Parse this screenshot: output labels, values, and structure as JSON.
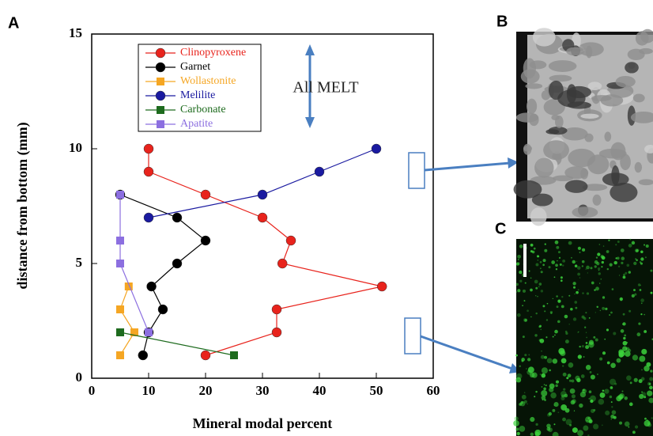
{
  "chart_data": {
    "type": "line",
    "panel_labels": [
      "A",
      "B",
      "C"
    ],
    "annotation": "All MELT",
    "xlabel": "Mineral modal percent",
    "ylabel": "distance from bottom (mm)",
    "xlim": [
      0,
      60
    ],
    "xticks": [
      0,
      10,
      20,
      30,
      40,
      50,
      60
    ],
    "ylim": [
      0,
      15
    ],
    "yticks": [
      0,
      5,
      10,
      15
    ],
    "series": [
      {
        "name": "Clinopyroxene",
        "color": "#e8231c",
        "marker": "circle",
        "x": [
          10,
          10,
          20,
          30,
          35,
          33.5,
          51,
          32.5,
          32.5,
          20
        ],
        "y": [
          10,
          9,
          8,
          7,
          6,
          5,
          4,
          3,
          2,
          1
        ]
      },
      {
        "name": "Garnet",
        "color": "#000000",
        "marker": "circle",
        "x": [
          5,
          15,
          20,
          15,
          10.5,
          12.5,
          10,
          9
        ],
        "y": [
          8,
          7,
          6,
          5,
          4,
          3,
          2,
          1
        ]
      },
      {
        "name": "Wollastonite",
        "color": "#f5a623",
        "marker": "square",
        "x": [
          6.5,
          5,
          7.5,
          5
        ],
        "y": [
          4,
          3,
          2,
          1
        ]
      },
      {
        "name": "Melilite",
        "color": "#1a1aa0",
        "marker": "circle",
        "x": [
          10,
          30,
          40,
          50
        ],
        "y": [
          7,
          8,
          9,
          10
        ]
      },
      {
        "name": "Carbonate",
        "color": "#1e6b1e",
        "marker": "square",
        "x": [
          5,
          25
        ],
        "y": [
          2,
          1
        ]
      },
      {
        "name": "Apatite",
        "color": "#8c6fe0",
        "marker": "square",
        "x": [
          5,
          5,
          5,
          10
        ],
        "y": [
          8,
          6,
          5,
          2
        ]
      }
    ]
  }
}
